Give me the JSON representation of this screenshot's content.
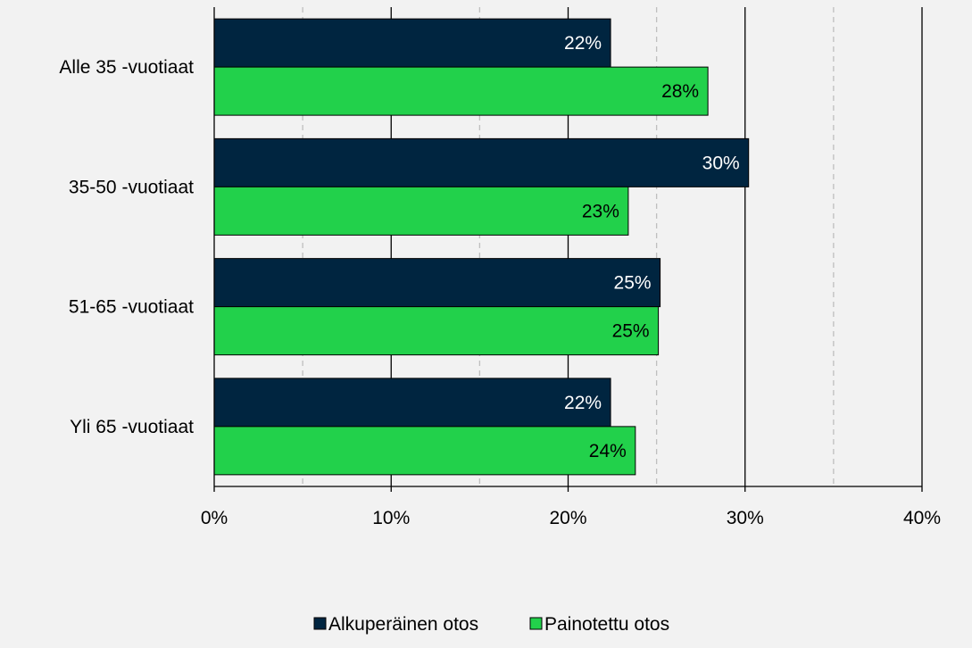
{
  "colors": {
    "background": "#f2f2f2",
    "series_1": "#002540",
    "series_2": "#22d14b",
    "grid_major": "#000000",
    "grid_minor": "#bfbfbf",
    "label_series_1": "#ffffff",
    "label_series_2": "#000000"
  },
  "chart_data": {
    "type": "bar",
    "orientation": "horizontal",
    "categories": [
      "Alle 35 -vuotiaat",
      "35-50 -vuotiaat",
      "51-65 -vuotiaat",
      "Yli 65 -vuotiaat"
    ],
    "series": [
      {
        "name": "Alkuperäinen otos",
        "values": [
          22.4,
          30.2,
          25.2,
          22.4
        ],
        "labels": [
          "22%",
          "30%",
          "25%",
          "22%"
        ]
      },
      {
        "name": "Painotettu otos",
        "values": [
          27.9,
          23.4,
          25.1,
          23.8
        ],
        "labels": [
          "28%",
          "23%",
          "25%",
          "24%"
        ]
      }
    ],
    "x_ticks": [
      0,
      10,
      20,
      30,
      40
    ],
    "x_tick_labels": [
      "0%",
      "10%",
      "20%",
      "30%",
      "40%"
    ],
    "xlim": [
      0,
      40
    ],
    "grid": {
      "major": [
        10,
        20,
        30,
        40
      ],
      "minor_dashed": [
        5,
        15,
        25,
        35
      ]
    },
    "legend_position": "bottom",
    "title": "",
    "xlabel": "",
    "ylabel": ""
  }
}
